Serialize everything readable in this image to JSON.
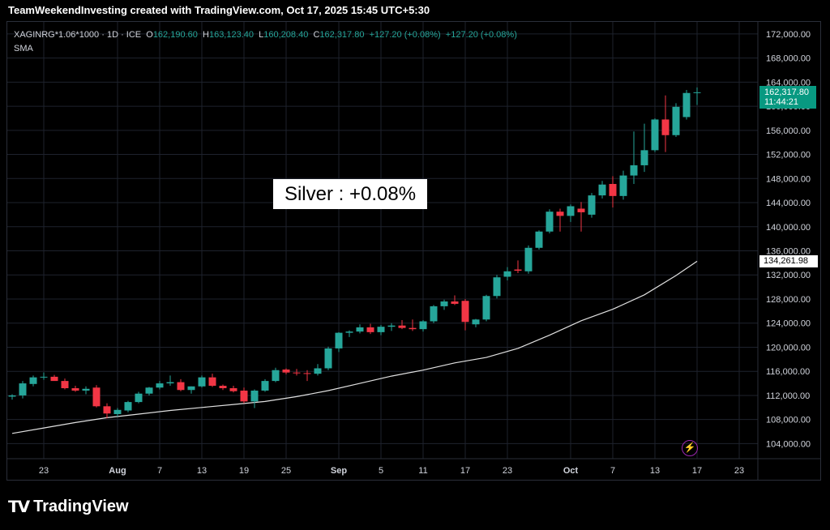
{
  "header": {
    "title": "TeamWeekendInvesting created with TradingView.com, Oct 17, 2025 15:45 UTC+5:30"
  },
  "legend": {
    "symbol": "XAGINRG*1.06*1000 · 1D · ICE",
    "o_label": "O",
    "o_value": "162,190.60",
    "h_label": "H",
    "h_value": "163,123.40",
    "l_label": "L",
    "l_value": "160,208.40",
    "c_label": "C",
    "c_value": "162,317.80",
    "change1": "+127.20 (+0.08%)",
    "change2": "+127.20 (+0.08%)",
    "indicator": "SMA"
  },
  "annotation": {
    "text": "Silver : +0.08%"
  },
  "price_tag": {
    "price": "162,317.80",
    "countdown": "11:44:21"
  },
  "sma_tag": {
    "value": "134,261.98"
  },
  "footer": {
    "brand": "TradingView"
  },
  "colors": {
    "up": "#26a69a",
    "down": "#f23645",
    "sma": "#e0e0e0",
    "grid": "#1e222d",
    "text": "#d1d4dc"
  },
  "chart_data": {
    "type": "candlestick",
    "yticks": [
      104000,
      108000,
      112000,
      116000,
      120000,
      124000,
      128000,
      132000,
      136000,
      140000,
      144000,
      148000,
      152000,
      156000,
      160000,
      164000,
      168000,
      172000
    ],
    "ytick_labels": [
      "104,000.00",
      "108,000.00",
      "112,000.00",
      "116,000.00",
      "120,000.00",
      "124,000.00",
      "128,000.00",
      "132,000.00",
      "136,000.00",
      "140,000.00",
      "144,000.00",
      "148,000.00",
      "152,000.00",
      "156,000.00",
      "160,000.00",
      "164,000.00",
      "168,000.00",
      "172,000.00"
    ],
    "ylim": [
      101500,
      174000
    ],
    "xticks": [
      {
        "label": "23",
        "index": 3
      },
      {
        "label": "Aug",
        "index": 10
      },
      {
        "label": "7",
        "index": 14
      },
      {
        "label": "13",
        "index": 18
      },
      {
        "label": "19",
        "index": 22
      },
      {
        "label": "25",
        "index": 26
      },
      {
        "label": "Sep",
        "index": 31
      },
      {
        "label": "5",
        "index": 35
      },
      {
        "label": "11",
        "index": 39
      },
      {
        "label": "17",
        "index": 43
      },
      {
        "label": "23",
        "index": 47
      },
      {
        "label": "Oct",
        "index": 53
      },
      {
        "label": "7",
        "index": 57
      },
      {
        "label": "13",
        "index": 61
      },
      {
        "label": "17",
        "index": 65
      },
      {
        "label": "23",
        "index": 69
      }
    ],
    "x_count": 72,
    "candles": [
      [
        111800,
        112200,
        111300,
        112000
      ],
      [
        112000,
        114400,
        111500,
        114000
      ],
      [
        113900,
        115300,
        113500,
        115000
      ],
      [
        115000,
        115800,
        114600,
        115100
      ],
      [
        115100,
        115400,
        114500,
        114400
      ],
      [
        114400,
        114800,
        113000,
        113200
      ],
      [
        113200,
        113600,
        112600,
        112800
      ],
      [
        112800,
        113500,
        112200,
        113100
      ],
      [
        113300,
        113700,
        110000,
        110200
      ],
      [
        110200,
        110700,
        108200,
        109000
      ],
      [
        108900,
        109900,
        108500,
        109600
      ],
      [
        109500,
        111100,
        109200,
        110900
      ],
      [
        110900,
        112600,
        110700,
        112300
      ],
      [
        112300,
        113400,
        112000,
        113300
      ],
      [
        113300,
        114400,
        113000,
        114000
      ],
      [
        114000,
        115300,
        113600,
        114200
      ],
      [
        114200,
        114700,
        112700,
        112900
      ],
      [
        112900,
        113500,
        112300,
        113500
      ],
      [
        113500,
        115300,
        113300,
        115000
      ],
      [
        115000,
        115600,
        113400,
        113600
      ],
      [
        113600,
        113800,
        112900,
        113200
      ],
      [
        113200,
        113600,
        112500,
        112700
      ],
      [
        112800,
        113300,
        110700,
        111000
      ],
      [
        111000,
        113000,
        109900,
        112800
      ],
      [
        112800,
        114700,
        112600,
        114400
      ],
      [
        114400,
        116600,
        114200,
        116200
      ],
      [
        116300,
        116500,
        115500,
        115800
      ],
      [
        115800,
        116400,
        115300,
        115700
      ],
      [
        115700,
        116200,
        114400,
        115600
      ],
      [
        115600,
        117200,
        115300,
        116500
      ],
      [
        116500,
        120100,
        116200,
        119800
      ],
      [
        119800,
        122500,
        119200,
        122400
      ],
      [
        122400,
        122800,
        121700,
        122600
      ],
      [
        122600,
        123800,
        122300,
        123300
      ],
      [
        123300,
        123900,
        122200,
        122500
      ],
      [
        122500,
        123700,
        122000,
        123400
      ],
      [
        123400,
        124000,
        122700,
        123600
      ],
      [
        123600,
        124500,
        123000,
        123200
      ],
      [
        123200,
        124600,
        122700,
        123000
      ],
      [
        123000,
        124500,
        122600,
        124300
      ],
      [
        124300,
        127000,
        124000,
        126800
      ],
      [
        126800,
        127900,
        126200,
        127600
      ],
      [
        127600,
        128600,
        127000,
        127200
      ],
      [
        127700,
        128000,
        122800,
        124200
      ],
      [
        123800,
        124700,
        123300,
        124600
      ],
      [
        124600,
        128700,
        124300,
        128500
      ],
      [
        128500,
        132000,
        128100,
        131600
      ],
      [
        131700,
        133300,
        131100,
        132600
      ],
      [
        132900,
        134400,
        132300,
        132700
      ],
      [
        132600,
        136900,
        132200,
        136500
      ],
      [
        136500,
        139400,
        136200,
        139200
      ],
      [
        139200,
        142900,
        138900,
        142500
      ],
      [
        142500,
        143000,
        139200,
        141800
      ],
      [
        141800,
        143700,
        140800,
        143400
      ],
      [
        143000,
        144100,
        139200,
        142400
      ],
      [
        142000,
        145600,
        141500,
        145200
      ],
      [
        145200,
        147600,
        144700,
        147000
      ],
      [
        147100,
        148400,
        143200,
        145100
      ],
      [
        145100,
        149300,
        144500,
        148500
      ],
      [
        148500,
        155800,
        147100,
        150200
      ],
      [
        150200,
        157100,
        149100,
        152700
      ],
      [
        152700,
        158000,
        152400,
        157800
      ],
      [
        157800,
        161800,
        152400,
        155200
      ],
      [
        155200,
        160500,
        154900,
        159900
      ],
      [
        158200,
        162700,
        157800,
        162200
      ],
      [
        162190.6,
        163123.4,
        160208.4,
        162317.8
      ]
    ],
    "sma": [
      [
        0,
        105700
      ],
      [
        3,
        106600
      ],
      [
        6,
        107500
      ],
      [
        9,
        108300
      ],
      [
        12,
        108900
      ],
      [
        15,
        109500
      ],
      [
        18,
        110000
      ],
      [
        21,
        110500
      ],
      [
        24,
        111000
      ],
      [
        27,
        111800
      ],
      [
        30,
        112800
      ],
      [
        33,
        114000
      ],
      [
        36,
        115200
      ],
      [
        39,
        116200
      ],
      [
        42,
        117400
      ],
      [
        45,
        118300
      ],
      [
        48,
        119800
      ],
      [
        51,
        122000
      ],
      [
        54,
        124400
      ],
      [
        57,
        126300
      ],
      [
        60,
        128700
      ],
      [
        63,
        131900
      ],
      [
        65,
        134262
      ]
    ],
    "last_price": 162317.8,
    "sma_last": 134261.98
  }
}
